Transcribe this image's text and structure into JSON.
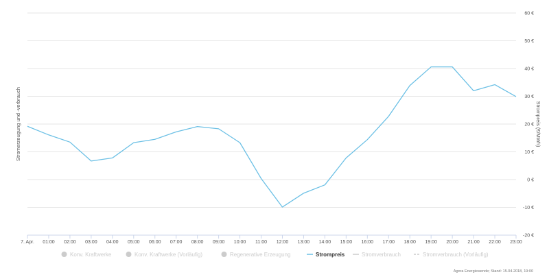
{
  "chart_data": {
    "type": "line",
    "title": "",
    "xlabel": "",
    "ylabel_left": "Stromerzeugung und -verbrauch",
    "ylabel_right": "Strompreis (€/MWh)",
    "ylim": [
      -20,
      60
    ],
    "yticks": [
      -20,
      -10,
      0,
      10,
      20,
      30,
      40,
      50,
      60
    ],
    "ytick_suffix": " €",
    "grid": true,
    "categories": [
      "7. Apr.",
      "01:00",
      "02:00",
      "03:00",
      "04:00",
      "05:00",
      "06:00",
      "07:00",
      "08:00",
      "09:00",
      "10:00",
      "11:00",
      "12:00",
      "13:00",
      "14:00",
      "15:00",
      "16:00",
      "17:00",
      "18:00",
      "19:00",
      "20:00",
      "21:00",
      "22:00",
      "23:00"
    ],
    "series": [
      {
        "name": "Strompreis",
        "color": "#6cc0e5",
        "values": [
          19.2,
          16.1,
          13.5,
          6.7,
          7.8,
          13.3,
          14.5,
          17.2,
          19.1,
          18.3,
          13.3,
          0.4,
          -9.9,
          -4.9,
          -1.9,
          7.8,
          14.4,
          22.8,
          33.9,
          40.6,
          40.6,
          32.0,
          34.2,
          29.9
        ]
      }
    ],
    "legend": {
      "placement": "bottom",
      "items": [
        {
          "label": "Konv. Kraftwerke",
          "marker": "circle",
          "active": false
        },
        {
          "label": "Konv. Kraftwerke (Vorläufig)",
          "marker": "circle",
          "active": false
        },
        {
          "label": "Regenerative Erzeugung",
          "marker": "circle",
          "active": false
        },
        {
          "label": "Strompreis",
          "marker": "line",
          "active": true
        },
        {
          "label": "Stromverbrauch",
          "marker": "line",
          "active": false
        },
        {
          "label": "Stromverbrauch (Vorläufig)",
          "marker": "dashed-line",
          "active": false
        }
      ]
    },
    "colors": {
      "price_line": "#6cc0e5",
      "inactive": "#cccccc",
      "grid": "#e6e6e6",
      "axis": "#ccd6eb"
    }
  },
  "credit": "Agora Energiewende; Stand: 15.04.2018, 19:00"
}
